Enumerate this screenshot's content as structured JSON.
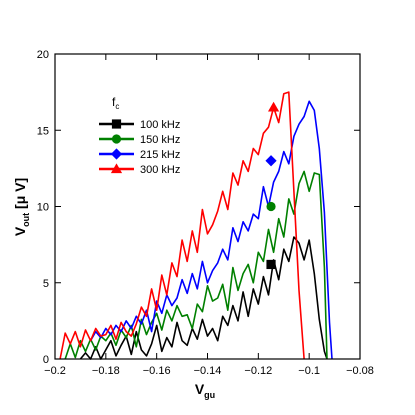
{
  "chart_data": {
    "type": "line",
    "xlabel": "V",
    "xlabel_sub": "gu",
    "ylabel": "V",
    "ylabel_sub": "out",
    "ylabel_unit": " [μ V]",
    "xlim": [
      -0.2,
      -0.08
    ],
    "ylim": [
      0,
      20
    ],
    "xticks": [
      -0.2,
      -0.18,
      -0.16,
      -0.14,
      -0.12,
      -0.1,
      -0.08
    ],
    "xtick_labels": [
      "−0.2",
      "−0.18",
      "−0.16",
      "−0.14",
      "−0.12",
      "−0.1",
      "−0.08"
    ],
    "yticks": [
      0,
      5,
      10,
      15,
      20
    ],
    "ytick_labels": [
      "0",
      "5",
      "10",
      "15",
      "20"
    ],
    "grid": false,
    "legend": {
      "title": "f",
      "title_sub": "c",
      "position": "top-left"
    },
    "series": [
      {
        "name": "100 kHz",
        "color": "#000000",
        "marker": "square",
        "marker_point": [
          -0.115,
          6.2
        ],
        "x": [
          -0.19,
          -0.188,
          -0.186,
          -0.184,
          -0.182,
          -0.18,
          -0.178,
          -0.176,
          -0.174,
          -0.172,
          -0.17,
          -0.168,
          -0.166,
          -0.164,
          -0.162,
          -0.16,
          -0.158,
          -0.156,
          -0.154,
          -0.152,
          -0.15,
          -0.148,
          -0.146,
          -0.144,
          -0.142,
          -0.14,
          -0.138,
          -0.136,
          -0.134,
          -0.132,
          -0.13,
          -0.128,
          -0.126,
          -0.124,
          -0.122,
          -0.12,
          -0.118,
          -0.116,
          -0.114,
          -0.112,
          -0.11,
          -0.108,
          -0.106,
          -0.104,
          -0.102,
          -0.1,
          -0.098,
          -0.096,
          -0.094,
          -0.093
        ],
        "values": [
          0,
          0.4,
          0,
          0.8,
          0,
          0.6,
          1.2,
          0.2,
          0.9,
          1.5,
          0.3,
          1.8,
          0.6,
          0.2,
          1.0,
          2.2,
          0.5,
          1.4,
          0.8,
          2.4,
          1.2,
          0.9,
          2.0,
          1.3,
          2.6,
          1.5,
          2.0,
          1.2,
          2.8,
          2.2,
          3.5,
          2.5,
          4.4,
          2.8,
          4.6,
          3.6,
          5.4,
          4.2,
          6.5,
          5.2,
          7.2,
          6.4,
          8.0,
          7.6,
          6.5,
          7.8,
          5.6,
          2.6,
          0.5,
          0
        ]
      },
      {
        "name": "150 kHz",
        "color": "#008000",
        "marker": "circle",
        "marker_point": [
          -0.115,
          10.0
        ],
        "x": [
          -0.196,
          -0.194,
          -0.192,
          -0.19,
          -0.188,
          -0.186,
          -0.184,
          -0.182,
          -0.18,
          -0.178,
          -0.176,
          -0.174,
          -0.172,
          -0.17,
          -0.168,
          -0.166,
          -0.164,
          -0.162,
          -0.16,
          -0.158,
          -0.156,
          -0.154,
          -0.152,
          -0.15,
          -0.148,
          -0.146,
          -0.144,
          -0.142,
          -0.14,
          -0.138,
          -0.136,
          -0.134,
          -0.132,
          -0.13,
          -0.128,
          -0.126,
          -0.124,
          -0.122,
          -0.12,
          -0.118,
          -0.116,
          -0.114,
          -0.112,
          -0.11,
          -0.108,
          -0.106,
          -0.104,
          -0.102,
          -0.1,
          -0.098,
          -0.096,
          -0.094,
          -0.093
        ],
        "values": [
          0,
          1.0,
          0.1,
          1.2,
          0.5,
          1.3,
          0.6,
          1.5,
          1.2,
          1.7,
          0.9,
          1.9,
          1.4,
          2.2,
          0.8,
          2.6,
          1.6,
          2.4,
          3.0,
          1.9,
          3.2,
          2.5,
          3.5,
          2.8,
          2.9,
          2.0,
          3.6,
          3.1,
          4.8,
          3.8,
          4.0,
          4.9,
          3.2,
          6.0,
          4.5,
          5.6,
          6.2,
          5.0,
          7.0,
          6.4,
          8.5,
          7.0,
          9.2,
          8.0,
          10.5,
          9.5,
          11.5,
          12.3,
          11.0,
          12.2,
          12.1,
          6.0,
          0
        ]
      },
      {
        "name": "215 kHz",
        "color": "#0000ff",
        "marker": "diamond",
        "marker_point": [
          -0.115,
          13.0
        ],
        "x": [
          -0.186,
          -0.184,
          -0.182,
          -0.18,
          -0.178,
          -0.176,
          -0.174,
          -0.172,
          -0.17,
          -0.168,
          -0.166,
          -0.164,
          -0.162,
          -0.16,
          -0.158,
          -0.156,
          -0.154,
          -0.152,
          -0.15,
          -0.148,
          -0.146,
          -0.144,
          -0.142,
          -0.14,
          -0.138,
          -0.136,
          -0.134,
          -0.132,
          -0.13,
          -0.128,
          -0.126,
          -0.124,
          -0.122,
          -0.12,
          -0.118,
          -0.116,
          -0.114,
          -0.112,
          -0.11,
          -0.108,
          -0.106,
          -0.104,
          -0.102,
          -0.1,
          -0.098,
          -0.096,
          -0.094,
          -0.092,
          -0.091
        ],
        "values": [
          1.2,
          1.8,
          1.4,
          2.0,
          1.6,
          2.2,
          1.8,
          2.5,
          2.0,
          2.8,
          2.3,
          3.2,
          1.8,
          3.8,
          3.0,
          4.2,
          3.5,
          4.0,
          5.2,
          4.3,
          5.6,
          4.6,
          6.4,
          5.0,
          5.8,
          6.3,
          7.2,
          6.5,
          8.6,
          7.7,
          9.0,
          8.4,
          9.5,
          9.2,
          11.3,
          10.0,
          11.6,
          12.3,
          13.6,
          12.8,
          14.6,
          15.4,
          15.9,
          16.9,
          16.3,
          13.8,
          9.6,
          2.4,
          0
        ]
      },
      {
        "name": "300 kHz",
        "color": "#ff0000",
        "marker": "triangle",
        "marker_point": [
          -0.114,
          16.5
        ],
        "x": [
          -0.198,
          -0.196,
          -0.194,
          -0.192,
          -0.19,
          -0.188,
          -0.186,
          -0.184,
          -0.182,
          -0.18,
          -0.178,
          -0.176,
          -0.174,
          -0.172,
          -0.17,
          -0.168,
          -0.166,
          -0.164,
          -0.162,
          -0.16,
          -0.158,
          -0.156,
          -0.154,
          -0.152,
          -0.15,
          -0.148,
          -0.146,
          -0.144,
          -0.142,
          -0.14,
          -0.138,
          -0.136,
          -0.134,
          -0.132,
          -0.13,
          -0.128,
          -0.126,
          -0.124,
          -0.122,
          -0.12,
          -0.118,
          -0.116,
          -0.114,
          -0.112,
          -0.11,
          -0.108,
          -0.106,
          -0.104,
          -0.102
        ],
        "values": [
          0,
          1.7,
          1.0,
          1.8,
          0.8,
          1.9,
          1.2,
          2.0,
          1.5,
          1.6,
          2.2,
          1.3,
          2.4,
          1.8,
          1.5,
          2.3,
          3.4,
          2.8,
          4.6,
          3.2,
          5.5,
          4.2,
          6.3,
          5.4,
          7.8,
          6.4,
          8.4,
          7.0,
          9.8,
          8.2,
          8.8,
          9.7,
          11.0,
          9.8,
          12.2,
          11.4,
          13.0,
          12.3,
          13.8,
          13.4,
          14.8,
          15.2,
          16.5,
          15.5,
          17.4,
          17.5,
          11.0,
          4.5,
          0
        ]
      }
    ]
  }
}
